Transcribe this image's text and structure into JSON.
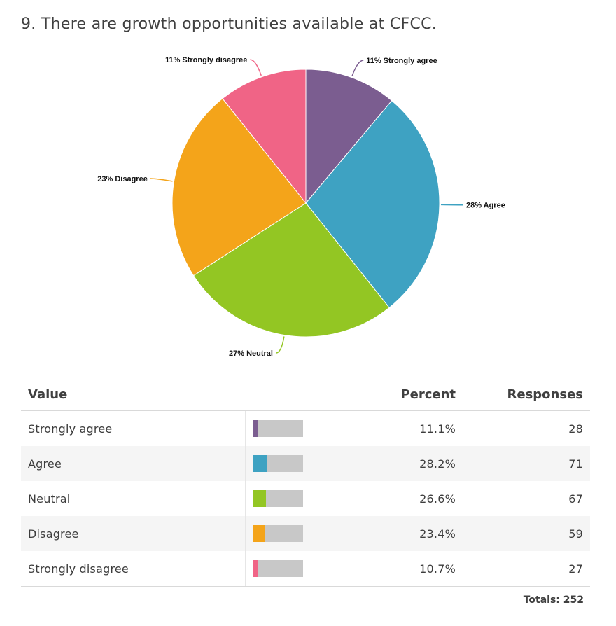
{
  "question": {
    "title": "9. There are growth opportunities available at CFCC."
  },
  "chart_data": {
    "type": "pie",
    "title": "9. There are growth opportunities available at CFCC.",
    "slices": [
      {
        "name": "Strongly agree",
        "value": 28,
        "percent_label": "11%",
        "color": "#7b5d90"
      },
      {
        "name": "Agree",
        "value": 71,
        "percent_label": "28%",
        "color": "#3ea2c2"
      },
      {
        "name": "Neutral",
        "value": 67,
        "percent_label": "27%",
        "color": "#93c623"
      },
      {
        "name": "Disagree",
        "value": 59,
        "percent_label": "23%",
        "color": "#f4a41a"
      },
      {
        "name": "Strongly disagree",
        "value": 27,
        "percent_label": "11%",
        "color": "#f06486"
      }
    ]
  },
  "table": {
    "headers": {
      "value": "Value",
      "percent": "Percent",
      "responses": "Responses"
    },
    "rows": [
      {
        "value": "Strongly agree",
        "percent": "11.1%",
        "percent_num": 11.1,
        "responses": "28",
        "color": "#7b5d90"
      },
      {
        "value": "Agree",
        "percent": "28.2%",
        "percent_num": 28.2,
        "responses": "71",
        "color": "#3ea2c2"
      },
      {
        "value": "Neutral",
        "percent": "26.6%",
        "percent_num": 26.6,
        "responses": "67",
        "color": "#93c623"
      },
      {
        "value": "Disagree",
        "percent": "23.4%",
        "percent_num": 23.4,
        "responses": "59",
        "color": "#f4a41a"
      },
      {
        "value": "Strongly disagree",
        "percent": "10.7%",
        "percent_num": 10.7,
        "responses": "27",
        "color": "#f06486"
      }
    ],
    "totals_label": "Totals: 252"
  }
}
